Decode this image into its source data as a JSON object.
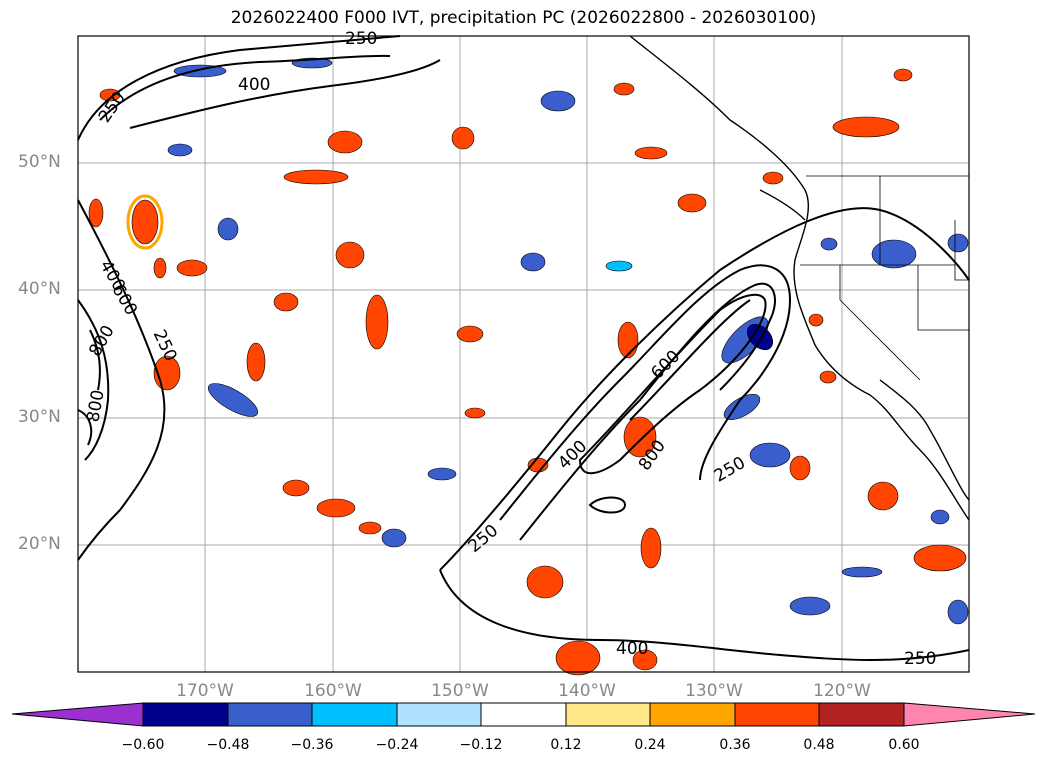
{
  "title": "2026022400 F000 IVT, precipitation PC (2026022800 - 2026030100)",
  "lat_labels": [
    "50°N",
    "40°N",
    "30°N",
    "20°N"
  ],
  "lon_labels": [
    "170°W",
    "160°W",
    "150°W",
    "140°W",
    "130°W",
    "120°W"
  ],
  "ivt_contour_labels": [
    "250",
    "400",
    "600",
    "800"
  ],
  "colorbar": {
    "ticks": [
      "−0.60",
      "−0.48",
      "−0.36",
      "−0.24",
      "−0.12",
      "0.12",
      "0.24",
      "0.36",
      "0.48",
      "0.60"
    ],
    "colors": [
      "#9b30d0",
      "#00008b",
      "#3a5fcd",
      "#00bfff",
      "#b0e2ff",
      "#ffffff",
      "#ffe78a",
      "#ffa500",
      "#ff4500",
      "#b22222",
      "#ff85b0"
    ]
  },
  "colors": {
    "land_lines": "#000000",
    "grid": "#aaaaaa",
    "tick_label": "#888888"
  }
}
